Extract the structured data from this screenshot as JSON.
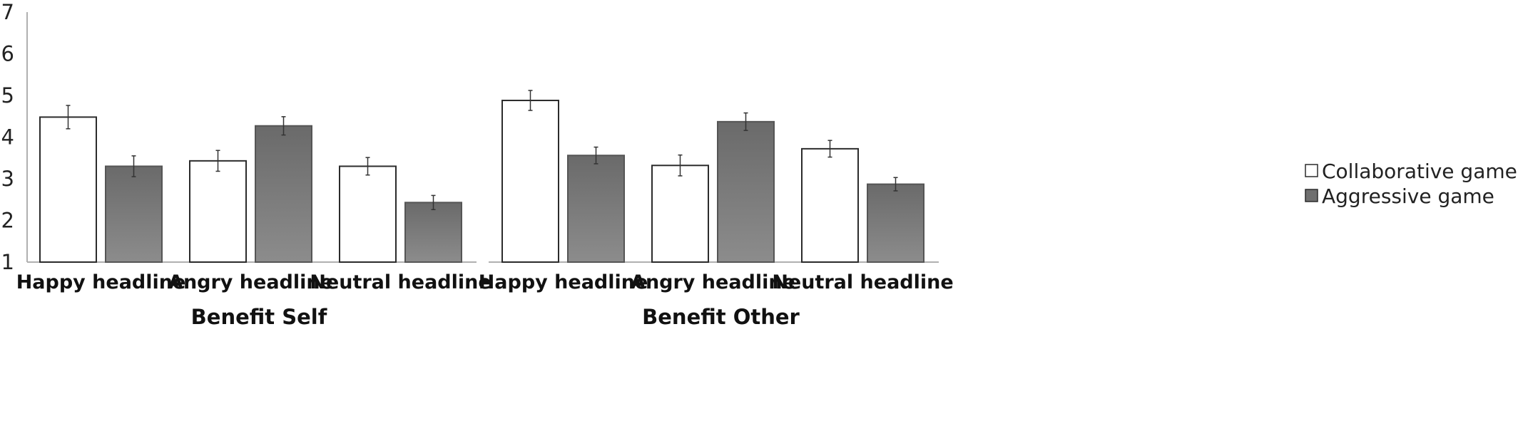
{
  "chart_data": {
    "type": "bar",
    "y_range": [
      1,
      7
    ],
    "y_ticks": [
      "1",
      "2",
      "3",
      "4",
      "5",
      "6",
      "7"
    ],
    "legend_position": "right",
    "grid": false,
    "series": [
      {
        "name": "Collaborative game",
        "color": "#ffffff"
      },
      {
        "name": "Aggressive game",
        "color": "#7a7a7a"
      }
    ],
    "groups": [
      {
        "label": "Benefit Self",
        "categories": [
          "Happy headline",
          "Angry headline",
          "Neutral headline"
        ],
        "values": [
          [
            4.48,
            3.43,
            3.3
          ],
          [
            3.3,
            4.27,
            2.43
          ]
        ],
        "errors": [
          [
            0.28,
            0.25,
            0.21
          ],
          [
            0.25,
            0.22,
            0.17
          ]
        ]
      },
      {
        "label": "Benefit Other",
        "categories": [
          "Happy headline",
          "Angry headline",
          "Neutral headline"
        ],
        "values": [
          [
            4.88,
            3.32,
            3.72
          ],
          [
            3.56,
            4.37,
            2.87
          ]
        ],
        "errors": [
          [
            0.24,
            0.25,
            0.2
          ],
          [
            0.2,
            0.21,
            0.16
          ]
        ]
      }
    ]
  }
}
